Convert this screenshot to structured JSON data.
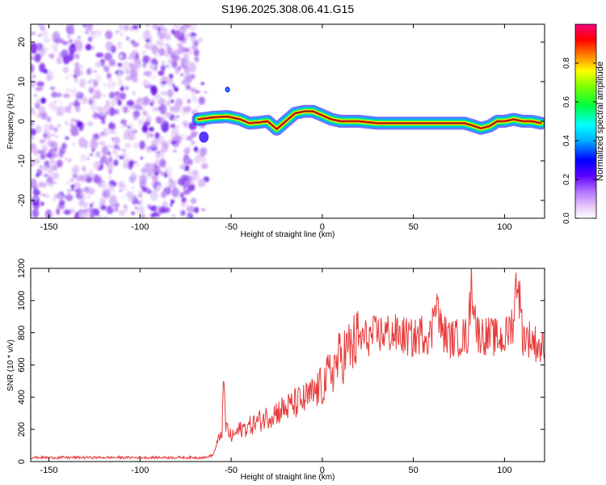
{
  "title": "S196.2025.308.06.41.G15",
  "chart_data": [
    {
      "type": "heatmap",
      "xlabel": "Height of straight line (km)",
      "ylabel": "Frequency (Hz)",
      "xlim": [
        -160,
        122
      ],
      "ylim": [
        -24.5,
        24.5
      ],
      "xticks": [
        -150,
        -100,
        -50,
        0,
        50,
        100
      ],
      "yticks": [
        -20,
        -10,
        0,
        10,
        20
      ],
      "noise_region_x": [
        -160,
        -68
      ],
      "ridge": {
        "x": [
          -68,
          -60,
          -52,
          -45,
          -40,
          -35,
          -30,
          -25,
          -20,
          -15,
          -10,
          -5,
          0,
          5,
          10,
          20,
          30,
          40,
          50,
          60,
          70,
          78,
          82,
          87,
          92,
          96,
          100,
          105,
          110,
          115,
          120
        ],
        "freq": [
          0.5,
          1.0,
          1.2,
          0.5,
          -0.5,
          -0.3,
          0.0,
          -2.0,
          0.0,
          2.0,
          2.5,
          2.5,
          1.5,
          0.5,
          0.0,
          0.0,
          -0.5,
          -0.5,
          -0.5,
          -0.5,
          -0.5,
          -0.5,
          -1.0,
          -1.8,
          -1.2,
          0.0,
          0.0,
          0.5,
          0.0,
          0.0,
          -0.5
        ]
      },
      "colorbar": {
        "label": "Normalized spectral amplitude",
        "ticks": [
          "0.0",
          "0.2",
          "0.4",
          "0.6",
          "0.8"
        ],
        "range": [
          0,
          1
        ]
      }
    },
    {
      "type": "line",
      "xlabel": "Height of straight line (km)",
      "ylabel": "SNR (10 * v/v)",
      "xlim": [
        -160,
        122
      ],
      "ylim": [
        0,
        1200
      ],
      "xticks": [
        -150,
        -100,
        -50,
        0,
        50,
        100
      ],
      "yticks": [
        0,
        200,
        400,
        600,
        800,
        1000,
        1200
      ],
      "color": "#e83a3a",
      "series": [
        {
          "name": "SNR",
          "x": [
            -160,
            -140,
            -120,
            -100,
            -80,
            -64,
            -60,
            -57,
            -55,
            -54,
            -53,
            -52,
            -50,
            -45,
            -40,
            -35,
            -30,
            -25,
            -20,
            -15,
            -10,
            -5,
            0,
            5,
            10,
            15,
            20,
            25,
            30,
            35,
            40,
            45,
            50,
            55,
            60,
            62,
            65,
            70,
            75,
            80,
            82,
            85,
            90,
            95,
            100,
            105,
            107,
            110,
            115,
            120,
            122
          ],
          "values": [
            25,
            25,
            25,
            25,
            25,
            25,
            40,
            130,
            200,
            475,
            220,
            200,
            150,
            200,
            220,
            250,
            280,
            310,
            330,
            360,
            380,
            420,
            470,
            560,
            650,
            700,
            760,
            770,
            790,
            800,
            790,
            780,
            760,
            800,
            780,
            1080,
            820,
            760,
            770,
            780,
            1130,
            800,
            780,
            770,
            760,
            880,
            1190,
            780,
            760,
            700,
            700
          ]
        }
      ]
    }
  ]
}
